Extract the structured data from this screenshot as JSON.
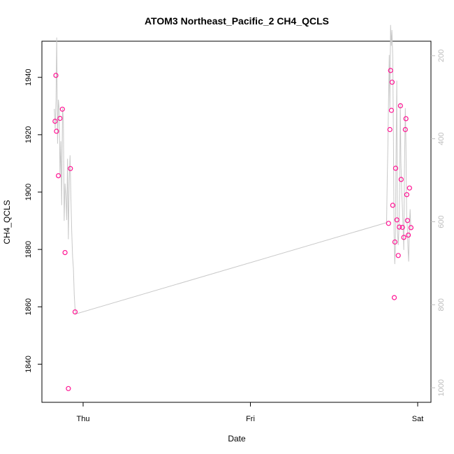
{
  "chart_data": {
    "type": "scatter",
    "title": "ATOM3 Northeast_Pacific_2 CH4_QCLS",
    "xlabel": "Date",
    "ylabel": "CH4_QCLS",
    "x_ticks": [
      "Thu",
      "Fri",
      "Sat"
    ],
    "x_range_days": [
      -0.2,
      2.0
    ],
    "y_ticks": [
      1840,
      1860,
      1880,
      1900,
      1920,
      1940
    ],
    "ylim": [
      1826.7,
      1952.6
    ],
    "y2_ticks": [
      200,
      400,
      600,
      800,
      1000
    ],
    "y2lim": [
      1035,
      165
    ],
    "grid": false,
    "marker_color": "#ff1493",
    "line_color": "#c8c8c8",
    "series": [
      {
        "points_x": [
          -0.168,
          -0.163,
          -0.159,
          -0.148,
          -0.138,
          -0.124,
          -0.108,
          -0.088,
          -0.076,
          -0.048,
          1.826,
          1.834,
          1.838,
          1.843,
          1.847,
          1.851,
          1.86,
          1.864,
          1.868,
          1.876,
          1.884,
          1.89,
          1.897,
          1.901,
          1.909,
          1.917,
          1.926,
          1.93,
          1.935,
          1.939,
          1.944,
          1.951,
          1.96
        ],
        "points_y": [
          1924.7,
          1940.7,
          1921.2,
          1905.7,
          1925.7,
          1928.9,
          1878.9,
          1831.5,
          1908.2,
          1858.2,
          1889.1,
          1921.8,
          1942.4,
          1928.5,
          1938.3,
          1895.4,
          1863.2,
          1882.6,
          1908.3,
          1890.3,
          1877.9,
          1887.8,
          1930.1,
          1904.4,
          1887.7,
          1884.2,
          1921.8,
          1925.6,
          1899.1,
          1890.1,
          1885.0,
          1901.4,
          1887.6
        ]
      },
      {
        "name": "",
        "line_x": [
          -0.172,
          -0.167,
          -0.162,
          -0.158,
          -0.153,
          -0.148,
          -0.143,
          -0.138,
          -0.133,
          -0.128,
          -0.123,
          -0.118,
          -0.113,
          -0.108,
          -0.103,
          -0.098,
          -0.093,
          -0.088,
          -0.083,
          -0.078,
          -0.073,
          -0.068,
          -0.063,
          -0.058,
          -0.053,
          -0.048,
          -0.043,
          1.814,
          1.818,
          1.822,
          1.826,
          1.83,
          1.834,
          1.838,
          1.842,
          1.846,
          1.851,
          1.855,
          1.859,
          1.863,
          1.867,
          1.871,
          1.875,
          1.879,
          1.884,
          1.888,
          1.892,
          1.896,
          1.9,
          1.904,
          1.909,
          1.913,
          1.917,
          1.921,
          1.926,
          1.93,
          1.934,
          1.938,
          1.942,
          1.946,
          1.951,
          1.955,
          1.959
        ],
        "line_y2": [
          328,
          376,
          308,
          156,
          412,
          306,
          330,
          492,
          406,
          560,
          326,
          352,
          598,
          508,
          538,
          596,
          448,
          642,
          500,
          440,
          542,
          624,
          684,
          712,
          776,
          812,
          822,
          602,
          500,
          412,
          304,
          198,
          330,
          126,
          176,
          138,
          202,
          400,
          626,
          702,
          660,
          430,
          260,
          620,
          656,
          618,
          534,
          316,
          456,
          522,
          568,
          618,
          668,
          474,
          326,
          410,
          588,
          612,
          664,
          696,
          598,
          570,
          618
        ]
      }
    ]
  }
}
